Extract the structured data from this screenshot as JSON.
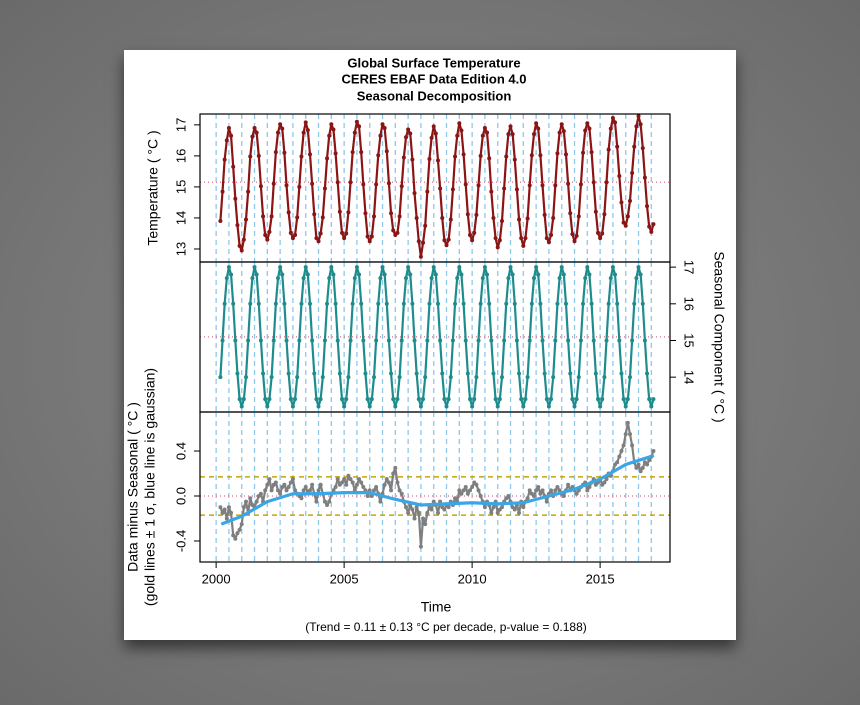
{
  "chart_data": {
    "type": "line",
    "title": [
      "Global Surface Temperature",
      "CERES EBAF Data Edition 4.0",
      "Seasonal Decomposition"
    ],
    "xlabel": "Time",
    "note": "(Trend = 0.11 ± 0.13 °C per decade, p-value = 0.188)",
    "xlim": [
      1999.37,
      2017.73
    ],
    "xticks": [
      2000,
      2005,
      2010,
      2015
    ],
    "xgrid": [
      2000,
      2000.5,
      2001,
      2001.5,
      2002,
      2002.5,
      2003,
      2003.5,
      2004,
      2004.5,
      2005,
      2005.5,
      2006,
      2006.5,
      2007,
      2007.5,
      2008,
      2008.5,
      2009,
      2009.5,
      2010,
      2010.5,
      2011,
      2011.5,
      2012,
      2012.5,
      2013,
      2013.5,
      2014,
      2014.5,
      2015,
      2015.5,
      2016,
      2016.5,
      2017
    ],
    "x": [
      2000.167,
      2000.25,
      2000.333,
      2000.417,
      2000.5,
      2000.583,
      2000.667,
      2000.75,
      2000.833,
      2000.917,
      2001,
      2001.083,
      2001.167,
      2001.25,
      2001.333,
      2001.417,
      2001.5,
      2001.583,
      2001.667,
      2001.75,
      2001.833,
      2001.917,
      2002,
      2002.083,
      2002.167,
      2002.25,
      2002.333,
      2002.417,
      2002.5,
      2002.583,
      2002.667,
      2002.75,
      2002.833,
      2002.917,
      2003,
      2003.083,
      2003.167,
      2003.25,
      2003.333,
      2003.417,
      2003.5,
      2003.583,
      2003.667,
      2003.75,
      2003.833,
      2003.917,
      2004,
      2004.083,
      2004.167,
      2004.25,
      2004.333,
      2004.417,
      2004.5,
      2004.583,
      2004.667,
      2004.75,
      2004.833,
      2004.917,
      2005,
      2005.083,
      2005.167,
      2005.25,
      2005.333,
      2005.417,
      2005.5,
      2005.583,
      2005.667,
      2005.75,
      2005.833,
      2005.917,
      2006,
      2006.083,
      2006.167,
      2006.25,
      2006.333,
      2006.417,
      2006.5,
      2006.583,
      2006.667,
      2006.75,
      2006.833,
      2006.917,
      2007,
      2007.083,
      2007.167,
      2007.25,
      2007.333,
      2007.417,
      2007.5,
      2007.583,
      2007.667,
      2007.75,
      2007.833,
      2007.917,
      2008,
      2008.083,
      2008.167,
      2008.25,
      2008.333,
      2008.417,
      2008.5,
      2008.583,
      2008.667,
      2008.75,
      2008.833,
      2008.917,
      2009,
      2009.083,
      2009.167,
      2009.25,
      2009.333,
      2009.417,
      2009.5,
      2009.583,
      2009.667,
      2009.75,
      2009.833,
      2009.917,
      2010,
      2010.083,
      2010.167,
      2010.25,
      2010.333,
      2010.417,
      2010.5,
      2010.583,
      2010.667,
      2010.75,
      2010.833,
      2010.917,
      2011,
      2011.083,
      2011.167,
      2011.25,
      2011.333,
      2011.417,
      2011.5,
      2011.583,
      2011.667,
      2011.75,
      2011.833,
      2011.917,
      2012,
      2012.083,
      2012.167,
      2012.25,
      2012.333,
      2012.417,
      2012.5,
      2012.583,
      2012.667,
      2012.75,
      2012.833,
      2012.917,
      2013,
      2013.083,
      2013.167,
      2013.25,
      2013.333,
      2013.417,
      2013.5,
      2013.583,
      2013.667,
      2013.75,
      2013.833,
      2013.917,
      2014,
      2014.083,
      2014.167,
      2014.25,
      2014.333,
      2014.417,
      2014.5,
      2014.583,
      2014.667,
      2014.75,
      2014.833,
      2014.917,
      2015,
      2015.083,
      2015.167,
      2015.25,
      2015.333,
      2015.417,
      2015.5,
      2015.583,
      2015.667,
      2015.75,
      2015.833,
      2015.917,
      2016,
      2016.083,
      2016.167,
      2016.25,
      2016.333,
      2016.417,
      2016.5,
      2016.583,
      2016.667,
      2016.75,
      2016.833,
      2016.917,
      2017,
      2017.083
    ],
    "panels": [
      {
        "ylabel": "Temperature ( °C )",
        "side": "left",
        "ylim": [
          12.58,
          17.35
        ],
        "yticks": [
          13,
          14,
          15,
          16,
          17
        ],
        "hlines": [
          {
            "value": 15.15,
            "color": "#d98aa0",
            "dash": "1 3"
          }
        ],
        "series": [
          {
            "color": "#8b1414",
            "markers": true,
            "values": [
              13.9,
              14.85,
              15.88,
              16.5,
              16.9,
              16.65,
              15.65,
              14.62,
              13.77,
              13.1,
              12.95,
              13.3,
              13.95,
              14.85,
              15.98,
              16.62,
              16.9,
              16.75,
              16.0,
              15.02,
              14.05,
              13.45,
              13.3,
              13.55,
              14.05,
              15.1,
              16.12,
              16.75,
              17.02,
              16.88,
              16.1,
              15.05,
              14.18,
              13.52,
              13.35,
              13.45,
              14.02,
              15.0,
              15.98,
              16.75,
              17.08,
              16.83,
              16.05,
              15.1,
              14.12,
              13.35,
              13.25,
              13.5,
              14.02,
              14.95,
              15.92,
              16.65,
              17.02,
              16.85,
              16.08,
              15.15,
              14.2,
              13.52,
              13.35,
              13.5,
              14.18,
              15.15,
              16.12,
              16.75,
              17.1,
              16.95,
              16.12,
              15.08,
              14.15,
              13.4,
              13.25,
              13.4,
              14.05,
              15.08,
              16.02,
              16.65,
              17.02,
              16.9,
              16.15,
              15.12,
              14.15,
              13.6,
              13.45,
              13.52,
              14.05,
              15.02,
              15.95,
              16.6,
              16.85,
              16.72,
              15.88,
              14.8,
              14.0,
              13.25,
              12.75,
              13.2,
              13.75,
              14.85,
              15.9,
              16.58,
              16.95,
              16.72,
              15.85,
              14.95,
              14.0,
              13.28,
              13.12,
              13.3,
              13.95,
              14.92,
              15.98,
              16.65,
              17.05,
              16.82,
              16.05,
              15.08,
              14.12,
              13.45,
              13.28,
              13.52,
              14.1,
              15.05,
              16.0,
              16.65,
              16.9,
              16.75,
              15.92,
              14.85,
              14.0,
              13.35,
              13.05,
              13.28,
              13.9,
              14.95,
              15.98,
              16.7,
              16.95,
              16.7,
              15.88,
              14.92,
              13.95,
              13.35,
              13.1,
              13.35,
              13.98,
              15.05,
              16.02,
              16.7,
              17.05,
              16.88,
              16.02,
              15.05,
              14.1,
              13.35,
              13.22,
              13.45,
              14.0,
              15.05,
              16.08,
              16.75,
              17.02,
              16.8,
              16.05,
              15.1,
              14.15,
              13.48,
              13.25,
              13.42,
              14.05,
              15.08,
              16.1,
              16.82,
              17.05,
              16.88,
              16.12,
              15.15,
              14.2,
              13.52,
              13.35,
              13.5,
              14.12,
              15.15,
              16.2,
              16.88,
              17.22,
              17.08,
              16.3,
              15.35,
              14.5,
              13.85,
              13.75,
              14.05,
              14.55,
              15.45,
              16.3,
              16.95,
              17.28,
              17.02,
              16.25,
              15.3,
              14.38,
              13.72,
              13.55,
              13.8
            ]
          }
        ]
      },
      {
        "ylabel": "Seasonal Component ( °C )",
        "side": "right",
        "ylim": [
          13.05,
          17.14
        ],
        "yticks": [
          14,
          15,
          16,
          17
        ],
        "hlines": [
          {
            "value": 15.1,
            "color": "#d98aa0",
            "dash": "1 3"
          }
        ],
        "series": [
          {
            "color": "#1f8c8c",
            "markers": true,
            "values": [
              14.0,
              15.0,
              16.0,
              16.7,
              17.0,
              16.8,
              16.0,
              15.0,
              14.1,
              13.4,
              13.2,
              13.4,
              14.0,
              15.0,
              16.0,
              16.7,
              17.0,
              16.8,
              16.0,
              15.0,
              14.1,
              13.4,
              13.2,
              13.4,
              14.0,
              15.0,
              16.0,
              16.7,
              17.0,
              16.8,
              16.0,
              15.0,
              14.1,
              13.4,
              13.2,
              13.4,
              14.0,
              15.0,
              16.0,
              16.7,
              17.0,
              16.8,
              16.0,
              15.0,
              14.1,
              13.4,
              13.2,
              13.4,
              14.0,
              15.0,
              16.0,
              16.7,
              17.0,
              16.8,
              16.0,
              15.0,
              14.1,
              13.4,
              13.2,
              13.4,
              14.0,
              15.0,
              16.0,
              16.7,
              17.0,
              16.8,
              16.0,
              15.0,
              14.1,
              13.4,
              13.2,
              13.4,
              14.0,
              15.0,
              16.0,
              16.7,
              17.0,
              16.8,
              16.0,
              15.0,
              14.1,
              13.4,
              13.2,
              13.4,
              14.0,
              15.0,
              16.0,
              16.7,
              17.0,
              16.8,
              16.0,
              15.0,
              14.1,
              13.4,
              13.2,
              13.4,
              14.0,
              15.0,
              16.0,
              16.7,
              17.0,
              16.8,
              16.0,
              15.0,
              14.1,
              13.4,
              13.2,
              13.4,
              14.0,
              15.0,
              16.0,
              16.7,
              17.0,
              16.8,
              16.0,
              15.0,
              14.1,
              13.4,
              13.2,
              13.4,
              14.0,
              15.0,
              16.0,
              16.7,
              17.0,
              16.8,
              16.0,
              15.0,
              14.1,
              13.4,
              13.2,
              13.4,
              14.0,
              15.0,
              16.0,
              16.7,
              17.0,
              16.8,
              16.0,
              15.0,
              14.1,
              13.4,
              13.2,
              13.4,
              14.0,
              15.0,
              16.0,
              16.7,
              17.0,
              16.8,
              16.0,
              15.0,
              14.1,
              13.4,
              13.2,
              13.4,
              14.0,
              15.0,
              16.0,
              16.7,
              17.0,
              16.8,
              16.0,
              15.0,
              14.1,
              13.4,
              13.2,
              13.4,
              14.0,
              15.0,
              16.0,
              16.7,
              17.0,
              16.8,
              16.0,
              15.0,
              14.1,
              13.4,
              13.2,
              13.4,
              14.0,
              15.0,
              16.0,
              16.7,
              17.0,
              16.8,
              16.0,
              15.0,
              14.1,
              13.4,
              13.2,
              13.4,
              14.0,
              15.0,
              16.0,
              16.7,
              17.0,
              16.8,
              16.0,
              15.0,
              14.1,
              13.4,
              13.2,
              13.4
            ]
          }
        ]
      },
      {
        "ylabel": [
          "Data minus Seasonal ( °C )",
          "(gold lines ± 1 σ, blue line is gaussian)"
        ],
        "side": "left",
        "ylim": [
          -0.587,
          0.747
        ],
        "yticks": [
          -0.4,
          {
            "value": 0,
            "label": "0.0"
          },
          0.4
        ],
        "hlines": [
          {
            "value": 0.17,
            "color": "#c9a400",
            "dash": "5 4"
          },
          {
            "value": -0.17,
            "color": "#c9a400",
            "dash": "5 4"
          },
          {
            "value": 0,
            "color": "#d98aa0",
            "dash": "1 3"
          }
        ],
        "series": [
          {
            "color": "#7f7f7f",
            "markers": true,
            "values": [
              -0.1,
              -0.15,
              -0.12,
              -0.2,
              -0.1,
              -0.15,
              -0.35,
              -0.38,
              -0.33,
              -0.3,
              -0.25,
              -0.1,
              -0.05,
              -0.15,
              -0.02,
              -0.08,
              -0.1,
              -0.05,
              0.0,
              0.02,
              -0.05,
              0.05,
              0.1,
              0.15,
              0.05,
              0.1,
              0.12,
              0.05,
              0.02,
              0.08,
              0.1,
              0.05,
              0.08,
              0.12,
              0.15,
              0.05,
              0.02,
              0.0,
              -0.02,
              0.05,
              0.08,
              0.03,
              0.05,
              0.1,
              0.02,
              -0.05,
              0.05,
              0.1,
              0.02,
              -0.05,
              -0.08,
              -0.05,
              0.02,
              0.05,
              0.08,
              0.15,
              0.1,
              0.12,
              0.15,
              0.1,
              0.18,
              0.15,
              0.12,
              0.05,
              0.1,
              0.15,
              0.12,
              0.08,
              0.05,
              0.0,
              0.05,
              0.0,
              0.05,
              0.08,
              0.02,
              -0.05,
              0.02,
              0.1,
              0.15,
              0.12,
              0.05,
              0.2,
              0.25,
              0.12,
              0.05,
              0.02,
              -0.05,
              -0.1,
              -0.15,
              -0.08,
              -0.12,
              -0.2,
              -0.1,
              -0.15,
              -0.45,
              -0.2,
              -0.25,
              -0.15,
              -0.1,
              -0.12,
              -0.05,
              -0.08,
              -0.15,
              -0.05,
              -0.1,
              -0.12,
              -0.08,
              -0.1,
              -0.05,
              -0.08,
              -0.02,
              -0.05,
              0.05,
              0.02,
              0.05,
              0.08,
              0.02,
              0.05,
              0.08,
              0.12,
              0.1,
              0.05,
              0.0,
              -0.05,
              -0.1,
              -0.05,
              -0.08,
              -0.15,
              -0.1,
              -0.05,
              -0.15,
              -0.12,
              -0.1,
              -0.05,
              -0.02,
              0.0,
              -0.05,
              -0.1,
              -0.12,
              -0.08,
              -0.15,
              -0.05,
              -0.1,
              -0.05,
              -0.02,
              0.05,
              0.02,
              0.0,
              0.05,
              0.08,
              0.02,
              0.05,
              0.0,
              -0.05,
              0.02,
              0.05,
              0.0,
              0.05,
              0.08,
              0.05,
              0.02,
              0.0,
              0.05,
              0.1,
              0.05,
              0.08,
              0.05,
              0.02,
              0.05,
              0.08,
              0.1,
              0.12,
              0.05,
              0.08,
              0.12,
              0.15,
              0.1,
              0.12,
              0.15,
              0.1,
              0.12,
              0.15,
              0.2,
              0.18,
              0.22,
              0.28,
              0.3,
              0.35,
              0.4,
              0.45,
              0.55,
              0.65,
              0.55,
              0.45,
              0.3,
              0.25,
              0.28,
              0.22,
              0.25,
              0.3,
              0.28,
              0.32,
              0.35,
              0.4
            ]
          },
          {
            "color": "#3aa6e6",
            "markers": false,
            "x": [
              2000.2,
              2001,
              2002,
              2003,
              2004,
              2005,
              2006,
              2007,
              2008,
              2009,
              2010,
              2011,
              2012,
              2013,
              2014,
              2015,
              2016,
              2017.1
            ],
            "values": [
              -0.25,
              -0.18,
              -0.05,
              0.02,
              0.02,
              0.03,
              0.03,
              -0.03,
              -0.08,
              -0.07,
              -0.06,
              -0.07,
              -0.06,
              0.0,
              0.06,
              0.15,
              0.28,
              0.36
            ]
          }
        ]
      }
    ]
  }
}
